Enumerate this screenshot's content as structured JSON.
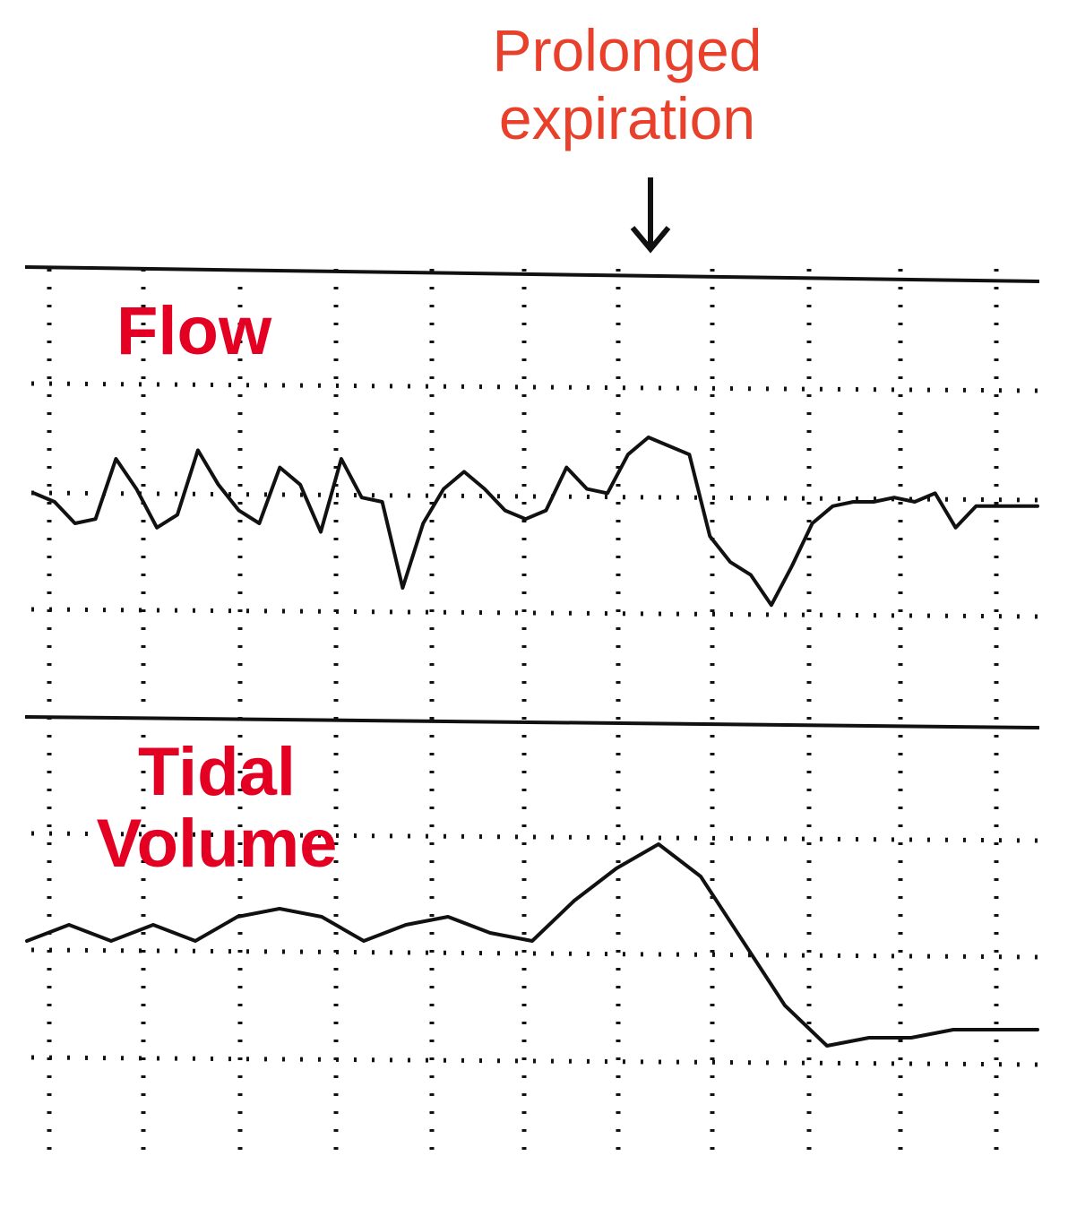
{
  "colors": {
    "annotation": "#e8402a",
    "panel_label": "#e30022",
    "trace": "#111111",
    "background": "#ffffff"
  },
  "annotation": {
    "line1": "Prolonged",
    "line2": "expiration",
    "arrow_icon": "down-arrow-icon"
  },
  "chart_data": [
    {
      "type": "line",
      "title": "Flow",
      "grid": true,
      "annotation": "Prolonged expiration (arrow)",
      "series": [
        {
          "values": [
            0.2,
            0.0,
            -0.5,
            -0.4,
            1.0,
            0.3,
            -0.6,
            -0.3,
            1.2,
            0.4,
            -0.2,
            -0.5,
            0.8,
            0.4,
            -0.7,
            1.0,
            0.1,
            0.0,
            -2.0,
            -0.5,
            0.3,
            0.7,
            0.3,
            -0.2,
            -0.4,
            -0.2,
            0.8,
            0.3,
            0.2,
            1.1,
            1.5,
            1.3,
            1.1,
            -0.8,
            -1.4,
            -1.7,
            -2.4,
            -1.5,
            -0.5,
            -0.1,
            0.0,
            0.0,
            0.1,
            0.0,
            0.2,
            -0.6,
            -0.1,
            -0.1,
            -0.1,
            -0.1
          ]
        }
      ]
    },
    {
      "type": "line",
      "title": "Tidal Volume",
      "grid": true,
      "series": [
        {
          "values": [
            0.0,
            0.2,
            0.0,
            0.2,
            0.0,
            0.3,
            0.4,
            0.3,
            0.0,
            0.2,
            0.3,
            0.1,
            0.0,
            0.5,
            0.9,
            1.2,
            0.8,
            0.0,
            -0.8,
            -1.3,
            -1.2,
            -1.2,
            -1.1,
            -1.1,
            -1.1
          ]
        }
      ]
    }
  ],
  "labels": {
    "flow": "Flow",
    "tidal_volume_1": "Tidal",
    "tidal_volume_2": "Volume"
  }
}
